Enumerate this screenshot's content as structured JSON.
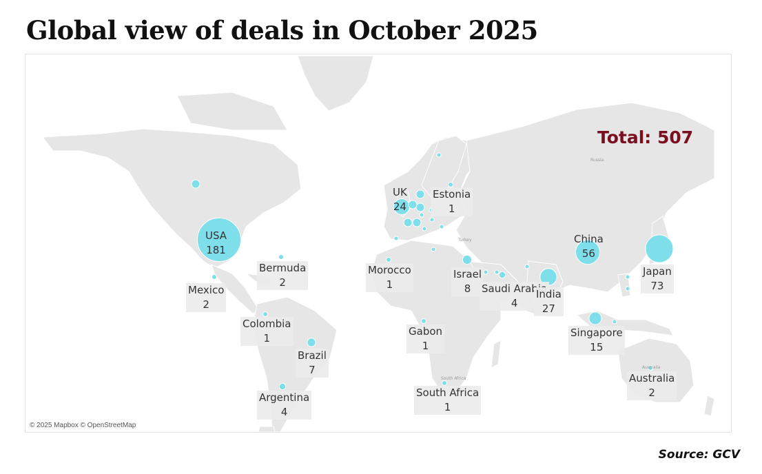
{
  "title": "Global view of deals in October 2025",
  "total_label": "Total: 507",
  "source": "Source: GCV",
  "attribution": "© 2025 Mapbox © OpenStreetMap",
  "colors": {
    "bubble": "#7edfeb",
    "total": "#7a0f1f",
    "land": "#e6e6e6"
  },
  "basemap_place_labels": [
    "Russia",
    "Turkey",
    "South Africa",
    "Australia"
  ],
  "countries": [
    {
      "name": "USA",
      "deals": 181
    },
    {
      "name": "UK",
      "deals": 24
    },
    {
      "name": "Estonia",
      "deals": 1
    },
    {
      "name": "Bermuda",
      "deals": 2
    },
    {
      "name": "Mexico",
      "deals": 2
    },
    {
      "name": "Colombia",
      "deals": 1
    },
    {
      "name": "Brazil",
      "deals": 7
    },
    {
      "name": "Argentina",
      "deals": 4
    },
    {
      "name": "Morocco",
      "deals": 1
    },
    {
      "name": "Israel",
      "deals": 8
    },
    {
      "name": "Saudi Arabia",
      "deals": 4
    },
    {
      "name": "Gabon",
      "deals": 1
    },
    {
      "name": "South Africa",
      "deals": 1
    },
    {
      "name": "India",
      "deals": 27
    },
    {
      "name": "China",
      "deals": 56
    },
    {
      "name": "Japan",
      "deals": 73
    },
    {
      "name": "Singapore",
      "deals": 15
    },
    {
      "name": "Australia",
      "deals": 2
    }
  ]
}
